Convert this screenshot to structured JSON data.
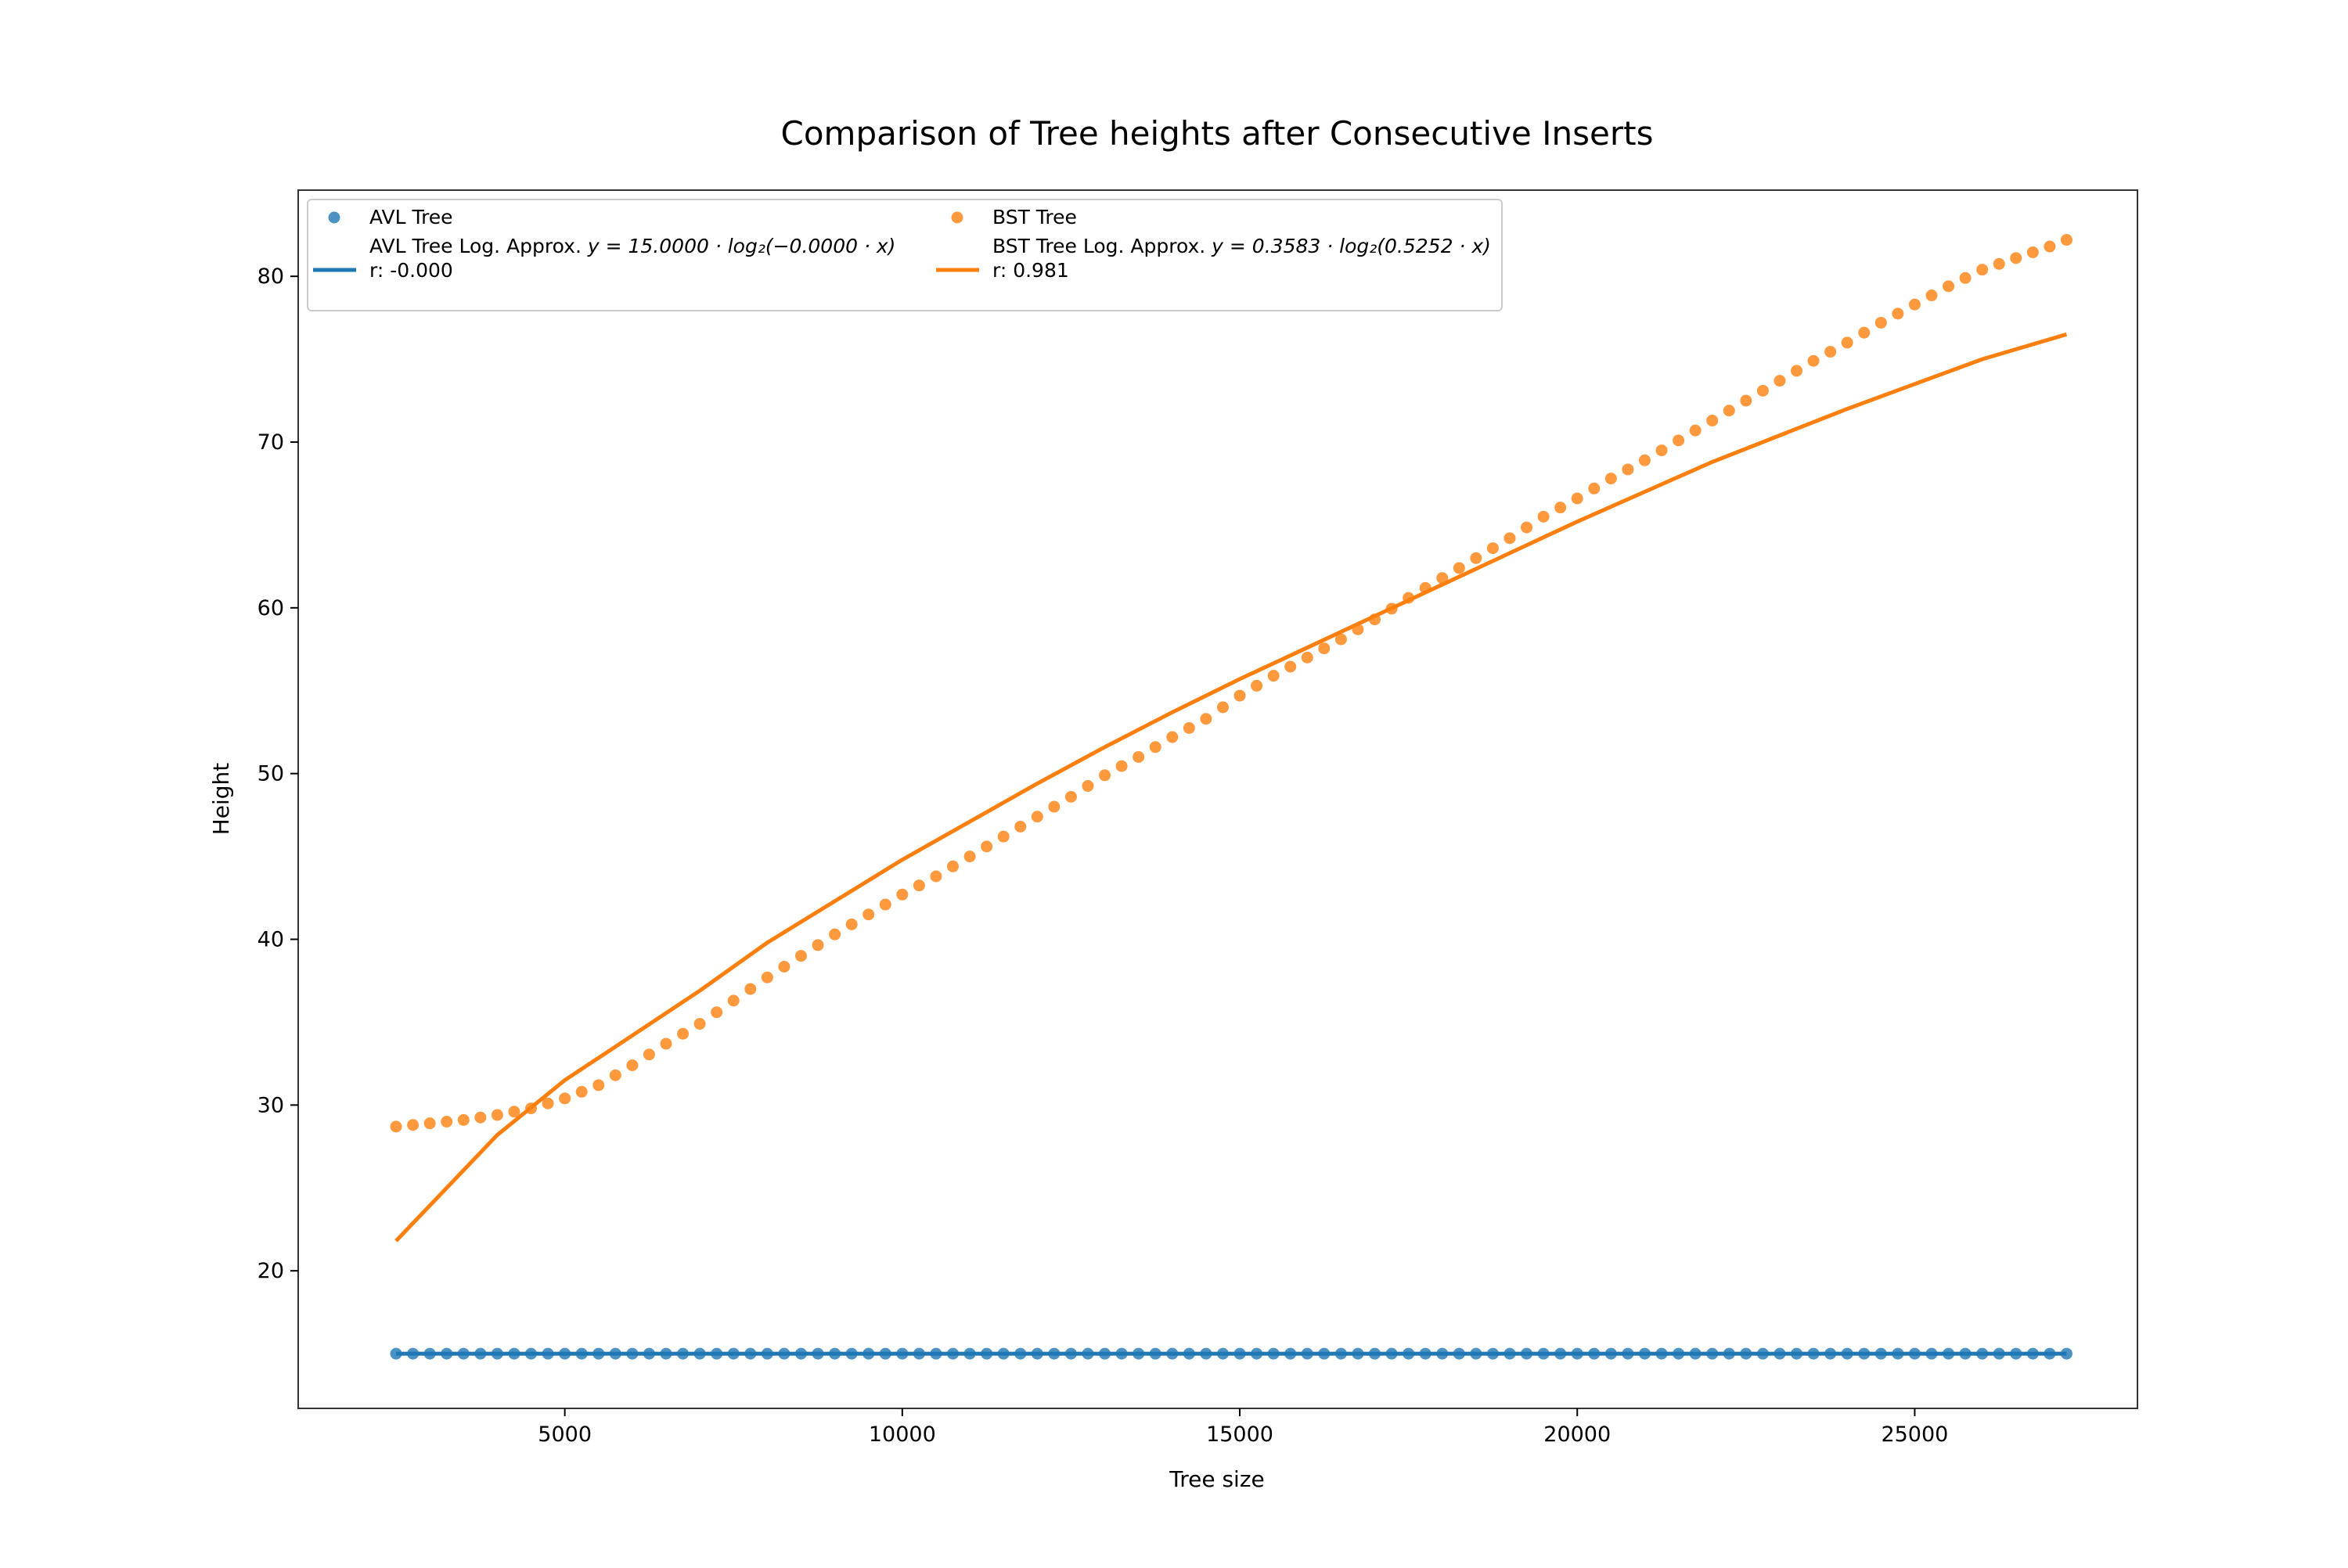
{
  "chart_data": {
    "type": "scatter",
    "title": "Comparison of Tree heights after Consecutive Inserts",
    "xlabel": "Tree size",
    "ylabel": "Height",
    "xlim": [
      1050,
      28300
    ],
    "ylim": [
      11.7,
      85.2
    ],
    "x_ticks": [
      5000,
      10000,
      15000,
      20000,
      25000
    ],
    "y_ticks": [
      20,
      30,
      40,
      50,
      60,
      70,
      80
    ],
    "grid": false,
    "legend_position": "top-left",
    "colors": {
      "avl": "#1f77b4",
      "bst": "#ff7f0e"
    },
    "legend": {
      "avl_points": "AVL Tree",
      "avl_fit_line1_prefix": "AVL Tree Log. Approx. ",
      "avl_fit_line1_formula": "y = 15.0000 · log₂(−0.0000 · x)",
      "avl_fit_line2": "r: -0.000",
      "bst_points": "BST Tree",
      "bst_fit_line1_prefix": "BST Tree Log. Approx. ",
      "bst_fit_line1_formula": "y = 0.3583 · log₂(0.5252 · x)",
      "bst_fit_line2": "r: 0.981"
    },
    "x_range": {
      "start": 2500,
      "end": 27250,
      "step": 250
    },
    "series": [
      {
        "name": "AVL Tree",
        "kind": "scatter",
        "y_constant": 15
      },
      {
        "name": "BST Tree",
        "kind": "scatter",
        "points": [
          [
            2500,
            28.7
          ],
          [
            3000,
            28.9
          ],
          [
            3500,
            29.1
          ],
          [
            4000,
            29.4
          ],
          [
            4500,
            29.8
          ],
          [
            5000,
            30.4
          ],
          [
            5500,
            31.2
          ],
          [
            6000,
            32.4
          ],
          [
            6500,
            33.7
          ],
          [
            7000,
            34.9
          ],
          [
            7500,
            36.3
          ],
          [
            8000,
            37.7
          ],
          [
            8500,
            39.0
          ],
          [
            9000,
            40.3
          ],
          [
            9500,
            41.5
          ],
          [
            10000,
            42.7
          ],
          [
            10500,
            43.8
          ],
          [
            11000,
            45.0
          ],
          [
            11500,
            46.2
          ],
          [
            12000,
            47.4
          ],
          [
            12500,
            48.6
          ],
          [
            13000,
            49.9
          ],
          [
            13500,
            51.0
          ],
          [
            14000,
            52.2
          ],
          [
            14500,
            53.3
          ],
          [
            15000,
            54.7
          ],
          [
            15500,
            55.9
          ],
          [
            16000,
            57.0
          ],
          [
            16500,
            58.1
          ],
          [
            17000,
            59.3
          ],
          [
            17500,
            60.6
          ],
          [
            18000,
            61.8
          ],
          [
            18500,
            63.0
          ],
          [
            19000,
            64.2
          ],
          [
            19500,
            65.5
          ],
          [
            20000,
            66.6
          ],
          [
            20500,
            67.8
          ],
          [
            21000,
            68.9
          ],
          [
            21500,
            70.1
          ],
          [
            22000,
            71.3
          ],
          [
            22500,
            72.5
          ],
          [
            23000,
            73.7
          ],
          [
            23500,
            74.9
          ],
          [
            24000,
            76.0
          ],
          [
            24500,
            77.2
          ],
          [
            25000,
            78.3
          ],
          [
            25500,
            79.4
          ],
          [
            26000,
            80.4
          ],
          [
            26500,
            81.1
          ],
          [
            27000,
            81.8
          ],
          [
            27250,
            82.2
          ]
        ]
      },
      {
        "name": "BST Tree Log. Approx.",
        "kind": "line",
        "points": [
          [
            2500,
            21.8
          ],
          [
            4000,
            28.2
          ],
          [
            5000,
            31.5
          ],
          [
            6000,
            34.2
          ],
          [
            7000,
            36.9
          ],
          [
            8000,
            39.8
          ],
          [
            9000,
            42.3
          ],
          [
            10000,
            44.8
          ],
          [
            11000,
            47.1
          ],
          [
            12000,
            49.4
          ],
          [
            13000,
            51.6
          ],
          [
            14000,
            53.7
          ],
          [
            15000,
            55.7
          ],
          [
            16000,
            57.6
          ],
          [
            17000,
            59.5
          ],
          [
            18000,
            61.4
          ],
          [
            19000,
            63.3
          ],
          [
            20000,
            65.2
          ],
          [
            21000,
            67.0
          ],
          [
            22000,
            68.8
          ],
          [
            23000,
            70.4
          ],
          [
            24000,
            72.0
          ],
          [
            25000,
            73.5
          ],
          [
            26000,
            75.0
          ],
          [
            27250,
            76.5
          ]
        ]
      }
    ]
  }
}
